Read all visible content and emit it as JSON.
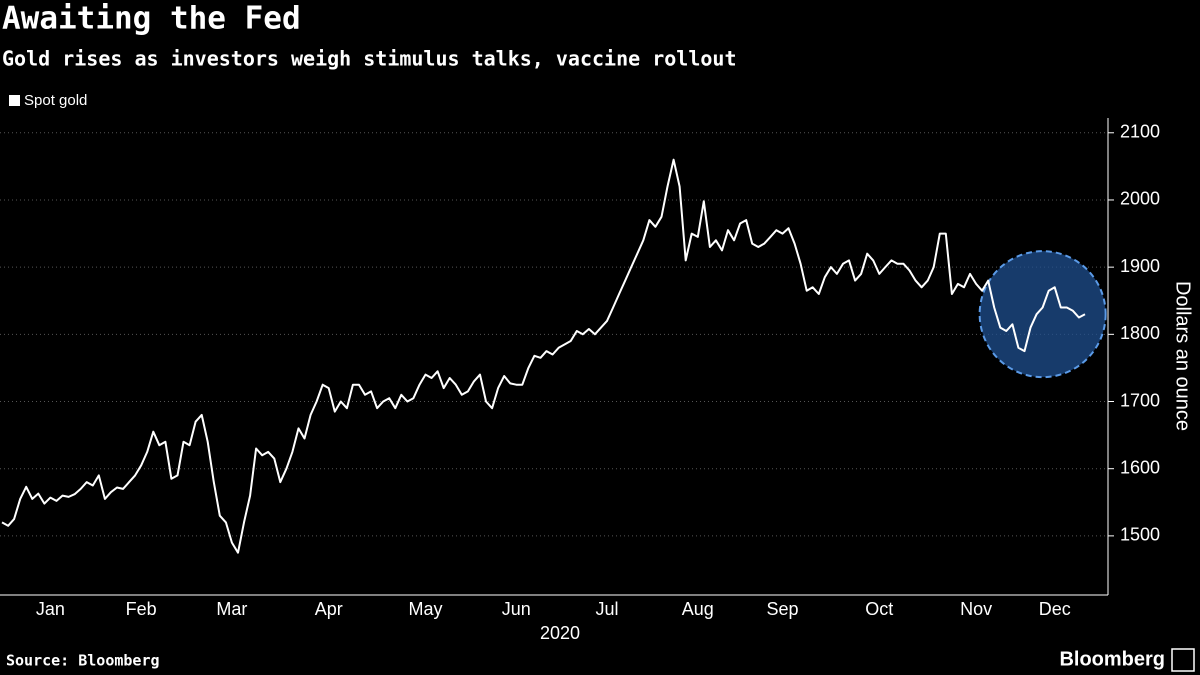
{
  "chart_data": {
    "type": "line",
    "title": "Awaiting the Fed",
    "subtitle": "Gold rises as investors weigh stimulus talks, vaccine rollout",
    "x_label": "2020",
    "y_label": "Dollars an ounce",
    "source": "Source: Bloomberg",
    "brand": "Bloomberg",
    "legend": "top-left",
    "grid": true,
    "ylim": [
      1412,
      2122
    ],
    "yticks": [
      1500,
      1600,
      1700,
      1800,
      1900,
      2000,
      2100
    ],
    "categories": [
      null,
      null,
      null,
      null,
      null,
      null,
      null,
      null,
      "Jan",
      null,
      null,
      null,
      null,
      null,
      null,
      null,
      null,
      null,
      null,
      null,
      null,
      null,
      null,
      "Feb",
      null,
      null,
      null,
      null,
      null,
      null,
      null,
      null,
      null,
      null,
      null,
      null,
      null,
      null,
      "Mar",
      null,
      null,
      null,
      null,
      null,
      null,
      null,
      null,
      null,
      null,
      null,
      null,
      null,
      null,
      null,
      "Apr",
      null,
      null,
      null,
      null,
      null,
      null,
      null,
      null,
      null,
      null,
      null,
      null,
      null,
      null,
      null,
      "May",
      null,
      null,
      null,
      null,
      null,
      null,
      null,
      null,
      null,
      null,
      null,
      null,
      null,
      null,
      "Jun",
      null,
      null,
      null,
      null,
      null,
      null,
      null,
      null,
      null,
      null,
      null,
      null,
      null,
      null,
      "Jul",
      null,
      null,
      null,
      null,
      null,
      null,
      null,
      null,
      null,
      null,
      null,
      null,
      null,
      null,
      "Aug",
      null,
      null,
      null,
      null,
      null,
      null,
      null,
      null,
      null,
      null,
      null,
      null,
      null,
      "Sep",
      null,
      null,
      null,
      null,
      null,
      null,
      null,
      null,
      null,
      null,
      null,
      null,
      null,
      null,
      null,
      "Oct",
      null,
      null,
      null,
      null,
      null,
      null,
      null,
      null,
      null,
      null,
      null,
      null,
      null,
      null,
      null,
      "Nov",
      null,
      null,
      null,
      null,
      null,
      null,
      null,
      null,
      null,
      null,
      null,
      null,
      "Dec",
      null,
      null,
      null,
      null,
      null
    ],
    "series": [
      {
        "name": "Spot gold",
        "color": "#ffffff",
        "values": [
          1520,
          1515,
          1525,
          1555,
          1573,
          1555,
          1563,
          1548,
          1557,
          1552,
          1560,
          1558,
          1562,
          1570,
          1580,
          1575,
          1590,
          1555,
          1565,
          1572,
          1570,
          1580,
          1590,
          1605,
          1625,
          1655,
          1635,
          1640,
          1585,
          1590,
          1640,
          1635,
          1670,
          1680,
          1640,
          1580,
          1530,
          1520,
          1490,
          1475,
          1520,
          1560,
          1630,
          1620,
          1625,
          1615,
          1580,
          1600,
          1625,
          1660,
          1645,
          1680,
          1700,
          1725,
          1720,
          1685,
          1700,
          1690,
          1725,
          1725,
          1710,
          1715,
          1690,
          1700,
          1705,
          1690,
          1710,
          1700,
          1705,
          1725,
          1740,
          1735,
          1745,
          1720,
          1735,
          1725,
          1710,
          1715,
          1730,
          1740,
          1700,
          1690,
          1720,
          1738,
          1727,
          1725,
          1725,
          1750,
          1768,
          1765,
          1775,
          1770,
          1780,
          1785,
          1790,
          1805,
          1800,
          1808,
          1800,
          1810,
          1820,
          1840,
          1860,
          1880,
          1900,
          1920,
          1940,
          1970,
          1960,
          1975,
          2020,
          2060,
          2020,
          1910,
          1950,
          1945,
          1998,
          1930,
          1940,
          1925,
          1955,
          1940,
          1965,
          1970,
          1935,
          1930,
          1935,
          1945,
          1955,
          1950,
          1958,
          1935,
          1905,
          1865,
          1870,
          1860,
          1885,
          1900,
          1890,
          1905,
          1910,
          1880,
          1890,
          1920,
          1910,
          1890,
          1900,
          1910,
          1905,
          1905,
          1895,
          1880,
          1870,
          1880,
          1900,
          1950,
          1950,
          1860,
          1875,
          1870,
          1890,
          1875,
          1865,
          1880,
          1840,
          1810,
          1805,
          1815,
          1780,
          1775,
          1810,
          1830,
          1840,
          1865,
          1870,
          1840,
          1840,
          1835,
          1825,
          1830
        ]
      }
    ]
  }
}
